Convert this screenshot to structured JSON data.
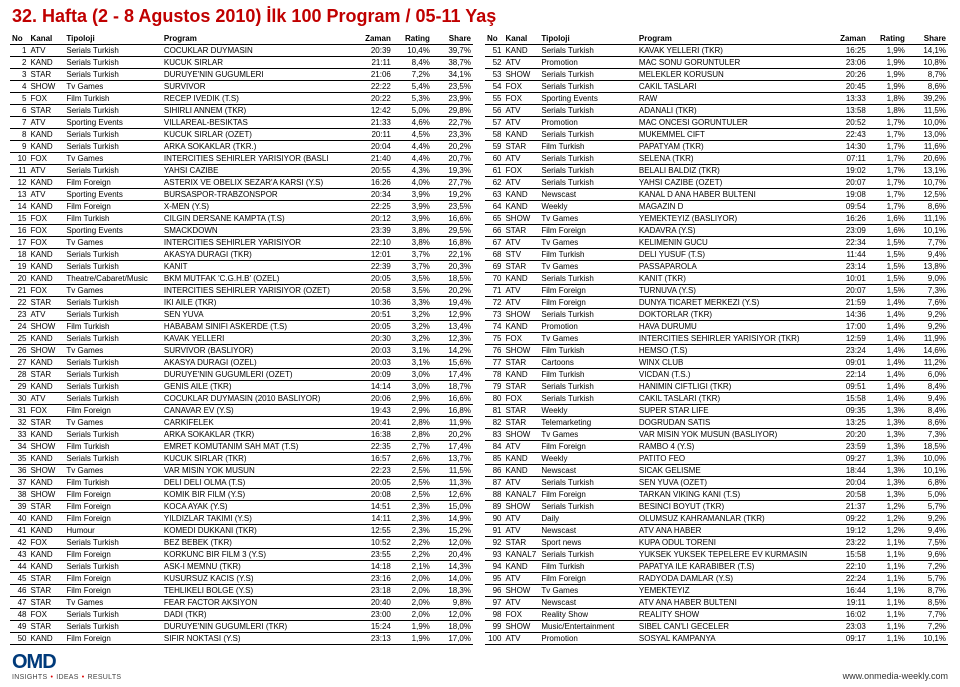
{
  "title": "32. Hafta (2 - 8 Agustos 2010) İlk 100 Program / 05-11 Yaş",
  "columns": [
    "No",
    "Kanal",
    "Tipoloji",
    "Program",
    "Zaman",
    "Rating",
    "Share"
  ],
  "logo": "OMD",
  "tagline_parts": [
    "INSIGHTS",
    "IDEAS",
    "RESULTS"
  ],
  "url": "www.onmedia-weekly.com",
  "rowsLeft": [
    [
      1,
      "ATV",
      "Serials Turkish",
      "COCUKLAR DUYMASIN",
      "20:39",
      "10,4%",
      "39,7%"
    ],
    [
      2,
      "KAND",
      "Serials Turkish",
      "KUCUK SIRLAR",
      "21:11",
      "8,4%",
      "38,7%"
    ],
    [
      3,
      "STAR",
      "Serials Turkish",
      "DURUYE'NIN GUGUMLERI",
      "21:06",
      "7,2%",
      "34,1%"
    ],
    [
      4,
      "SHOW",
      "Tv Games",
      "SURVIVOR",
      "22:22",
      "5,4%",
      "23,5%"
    ],
    [
      5,
      "FOX",
      "Film Turkish",
      "RECEP IVEDIK (T.S)",
      "20:22",
      "5,3%",
      "23,9%"
    ],
    [
      6,
      "STAR",
      "Serials Turkish",
      "SIHIRLI ANNEM (TKR)",
      "12:42",
      "5,0%",
      "29,8%"
    ],
    [
      7,
      "ATV",
      "Sporting Events",
      "VILLAREAL-BESIKTAS",
      "21:33",
      "4,6%",
      "22,7%"
    ],
    [
      8,
      "KAND",
      "Serials Turkish",
      "KUCUK SIRLAR (OZET)",
      "20:11",
      "4,5%",
      "23,3%"
    ],
    [
      9,
      "KAND",
      "Serials Turkish",
      "ARKA SOKAKLAR (TKR.)",
      "20:04",
      "4,4%",
      "20,2%"
    ],
    [
      10,
      "FOX",
      "Tv Games",
      "INTERCITIES SEHIRLER YARISIYOR (BASLI",
      "21:40",
      "4,4%",
      "20,7%"
    ],
    [
      11,
      "ATV",
      "Serials Turkish",
      "YAHSI CAZIBE",
      "20:55",
      "4,3%",
      "19,3%"
    ],
    [
      12,
      "KAND",
      "Film Foreign",
      "ASTERIX VE OBELIX SEZAR'A KARSI (Y.S)",
      "16:26",
      "4,0%",
      "27,7%"
    ],
    [
      13,
      "ATV",
      "Sporting Events",
      "BURSASPOR-TRABZONSPOR",
      "20:34",
      "3,9%",
      "19,2%"
    ],
    [
      14,
      "KAND",
      "Film Foreign",
      "X-MEN (Y.S)",
      "22:25",
      "3,9%",
      "23,5%"
    ],
    [
      15,
      "FOX",
      "Film Turkish",
      "CILGIN DERSANE KAMPTA (T.S)",
      "20:12",
      "3,9%",
      "16,6%"
    ],
    [
      16,
      "FOX",
      "Sporting Events",
      "SMACKDOWN",
      "23:39",
      "3,8%",
      "29,5%"
    ],
    [
      17,
      "FOX",
      "Tv Games",
      "INTERCITIES SEHIRLER YARISIYOR",
      "22:10",
      "3,8%",
      "16,8%"
    ],
    [
      18,
      "KAND",
      "Serials Turkish",
      "AKASYA DURAGI (TKR)",
      "12:01",
      "3,7%",
      "22,1%"
    ],
    [
      19,
      "KAND",
      "Serials Turkish",
      "KANIT",
      "22:39",
      "3,7%",
      "20,3%"
    ],
    [
      20,
      "KAND",
      "Theatre/Cabaret/Music",
      "BKM MUTFAK 'C.G.H.B' (OZEL)",
      "20:05",
      "3,5%",
      "18,5%"
    ],
    [
      21,
      "FOX",
      "Tv Games",
      "INTERCITIES SEHIRLER YARISIYOR (OZET)",
      "20:58",
      "3,5%",
      "20,2%"
    ],
    [
      22,
      "STAR",
      "Serials Turkish",
      "IKI AILE (TKR)",
      "10:36",
      "3,3%",
      "19,4%"
    ],
    [
      23,
      "ATV",
      "Serials Turkish",
      "SEN YUVA",
      "20:51",
      "3,2%",
      "12,9%"
    ],
    [
      24,
      "SHOW",
      "Film Turkish",
      "HABABAM SINIFI ASKERDE (T.S)",
      "20:05",
      "3,2%",
      "13,4%"
    ],
    [
      25,
      "KAND",
      "Serials Turkish",
      "KAVAK YELLERI",
      "20:30",
      "3,2%",
      "12,3%"
    ],
    [
      26,
      "SHOW",
      "Tv Games",
      "SURVIVOR (BASLIYOR)",
      "20:03",
      "3,1%",
      "14,2%"
    ],
    [
      27,
      "KAND",
      "Serials Turkish",
      "AKASYA DURAGI (OZEL)",
      "20:03",
      "3,1%",
      "15,6%"
    ],
    [
      28,
      "STAR",
      "Serials Turkish",
      "DURUYE'NIN GUGUMLERI (OZET)",
      "20:09",
      "3,0%",
      "17,4%"
    ],
    [
      29,
      "KAND",
      "Serials Turkish",
      "GENIS AILE (TKR)",
      "14:14",
      "3,0%",
      "18,7%"
    ],
    [
      30,
      "ATV",
      "Serials Turkish",
      "COCUKLAR DUYMASIN (2010 BASLIYOR)",
      "20:06",
      "2,9%",
      "16,6%"
    ],
    [
      31,
      "FOX",
      "Film Foreign",
      "CANAVAR EV (Y.S)",
      "19:43",
      "2,9%",
      "16,8%"
    ],
    [
      32,
      "STAR",
      "Tv Games",
      "CARKIFELEK",
      "20:41",
      "2,8%",
      "11,9%"
    ],
    [
      33,
      "KAND",
      "Serials Turkish",
      "ARKA SOKAKLAR (TKR)",
      "16:38",
      "2,8%",
      "20,2%"
    ],
    [
      34,
      "SHOW",
      "Film Turkish",
      "EMRET KOMUTANIM SAH MAT (T.S)",
      "22:35",
      "2,7%",
      "17,4%"
    ],
    [
      35,
      "KAND",
      "Serials Turkish",
      "KUCUK SIRLAR (TKR)",
      "16:57",
      "2,6%",
      "13,7%"
    ],
    [
      36,
      "SHOW",
      "Tv Games",
      "VAR MISIN YOK MUSUN",
      "22:23",
      "2,5%",
      "11,5%"
    ],
    [
      37,
      "KAND",
      "Film Turkish",
      "DELI DELI OLMA (T.S)",
      "20:05",
      "2,5%",
      "11,3%"
    ],
    [
      38,
      "SHOW",
      "Film Foreign",
      "KOMIK BIR FILM (Y.S)",
      "20:08",
      "2,5%",
      "12,6%"
    ],
    [
      39,
      "STAR",
      "Film Foreign",
      "KOCA AYAK (Y.S)",
      "14:51",
      "2,3%",
      "15,0%"
    ],
    [
      40,
      "KAND",
      "Film Foreign",
      "YILDIZLAR TAKIMI (Y.S)",
      "14:11",
      "2,3%",
      "14,9%"
    ],
    [
      41,
      "KAND",
      "Humour",
      "KOMEDI DUKKANI (TKR)",
      "12:55",
      "2,3%",
      "15,2%"
    ],
    [
      42,
      "FOX",
      "Serials Turkish",
      "BEZ BEBEK (TKR)",
      "10:52",
      "2,2%",
      "12,0%"
    ],
    [
      43,
      "KAND",
      "Film Foreign",
      "KORKUNC BIR FILM 3 (Y.S)",
      "23:55",
      "2,2%",
      "20,4%"
    ],
    [
      44,
      "KAND",
      "Serials Turkish",
      "ASK-I MEMNU (TKR)",
      "14:18",
      "2,1%",
      "14,3%"
    ],
    [
      45,
      "STAR",
      "Film Foreign",
      "KUSURSUZ KACIS (Y.S)",
      "23:16",
      "2,0%",
      "14,0%"
    ],
    [
      46,
      "STAR",
      "Film Foreign",
      "TEHLIKELI BOLGE (Y.S)",
      "23:18",
      "2,0%",
      "18,3%"
    ],
    [
      47,
      "STAR",
      "Tv Games",
      "FEAR FACTOR AKSIYON",
      "20:40",
      "2,0%",
      "9,8%"
    ],
    [
      48,
      "FOX",
      "Serials Turkish",
      "DADI (TKR)",
      "23:00",
      "2,0%",
      "12,0%"
    ],
    [
      49,
      "STAR",
      "Serials Turkish",
      "DURUYE'NIN GUGUMLERI (TKR)",
      "15:24",
      "1,9%",
      "18,0%"
    ],
    [
      50,
      "KAND",
      "Film Foreign",
      "SIFIR NOKTASI (Y.S)",
      "23:13",
      "1,9%",
      "17,0%"
    ]
  ],
  "rowsRight": [
    [
      51,
      "KAND",
      "Serials Turkish",
      "KAVAK YELLERI (TKR)",
      "16:25",
      "1,9%",
      "14,1%"
    ],
    [
      52,
      "ATV",
      "Promotion",
      "MAC SONU GORUNTULER",
      "23:06",
      "1,9%",
      "10,8%"
    ],
    [
      53,
      "SHOW",
      "Serials Turkish",
      "MELEKLER KORUSUN",
      "20:26",
      "1,9%",
      "8,7%"
    ],
    [
      54,
      "FOX",
      "Serials Turkish",
      "CAKIL TASLARI",
      "20:45",
      "1,9%",
      "8,6%"
    ],
    [
      55,
      "FOX",
      "Sporting Events",
      "RAW",
      "13:33",
      "1,8%",
      "39,2%"
    ],
    [
      56,
      "ATV",
      "Serials Turkish",
      "ADANALI (TKR)",
      "13:58",
      "1,8%",
      "11,5%"
    ],
    [
      57,
      "ATV",
      "Promotion",
      "MAC ONCESI GORUNTULER",
      "20:52",
      "1,7%",
      "10,0%"
    ],
    [
      58,
      "KAND",
      "Serials Turkish",
      "MUKEMMEL CIFT",
      "22:43",
      "1,7%",
      "13,0%"
    ],
    [
      59,
      "STAR",
      "Film Turkish",
      "PAPATYAM (TKR)",
      "14:30",
      "1,7%",
      "11,6%"
    ],
    [
      60,
      "ATV",
      "Serials Turkish",
      "SELENA (TKR)",
      "07:11",
      "1,7%",
      "20,6%"
    ],
    [
      61,
      "FOX",
      "Serials Turkish",
      "BELALI BALDIZ (TKR)",
      "19:02",
      "1,7%",
      "13,1%"
    ],
    [
      62,
      "ATV",
      "Serials Turkish",
      "YAHSI CAZIBE (OZET)",
      "20:07",
      "1,7%",
      "10,7%"
    ],
    [
      63,
      "KAND",
      "Newscast",
      "KANAL D ANA HABER BULTENI",
      "19:08",
      "1,7%",
      "12,5%"
    ],
    [
      64,
      "KAND",
      "Weekly",
      "MAGAZIN D",
      "09:54",
      "1,7%",
      "8,6%"
    ],
    [
      65,
      "SHOW",
      "Tv Games",
      "YEMEKTEYIZ (BASLIYOR)",
      "16:26",
      "1,6%",
      "11,1%"
    ],
    [
      66,
      "STAR",
      "Film Foreign",
      "KADAVRA (Y.S)",
      "23:09",
      "1,6%",
      "10,1%"
    ],
    [
      67,
      "ATV",
      "Tv Games",
      "KELIMENIN GUCU",
      "22:34",
      "1,5%",
      "7,7%"
    ],
    [
      68,
      "STV",
      "Film Turkish",
      "DELI YUSUF (T.S)",
      "11:44",
      "1,5%",
      "9,4%"
    ],
    [
      69,
      "STAR",
      "Tv Games",
      "PASSAPAROLA",
      "23:14",
      "1,5%",
      "13,8%"
    ],
    [
      70,
      "KAND",
      "Serials Turkish",
      "KANIT (TKR)",
      "10:01",
      "1,5%",
      "9,0%"
    ],
    [
      71,
      "ATV",
      "Film Foreign",
      "TURNUVA (Y.S)",
      "20:07",
      "1,5%",
      "7,3%"
    ],
    [
      72,
      "ATV",
      "Film Foreign",
      "DUNYA TICARET MERKEZI (Y.S)",
      "21:59",
      "1,4%",
      "7,6%"
    ],
    [
      73,
      "SHOW",
      "Serials Turkish",
      "DOKTORLAR (TKR)",
      "14:36",
      "1,4%",
      "9,2%"
    ],
    [
      74,
      "KAND",
      "Promotion",
      "HAVA DURUMU",
      "17:00",
      "1,4%",
      "9,2%"
    ],
    [
      75,
      "FOX",
      "Tv Games",
      "INTERCITIES SEHIRLER YARISIYOR (TKR)",
      "12:59",
      "1,4%",
      "11,9%"
    ],
    [
      76,
      "SHOW",
      "Film Turkish",
      "HEMSO (T.S)",
      "23:24",
      "1,4%",
      "14,6%"
    ],
    [
      77,
      "STAR",
      "Cartoons",
      "WINX CLUB",
      "09:01",
      "1,4%",
      "11,2%"
    ],
    [
      78,
      "KAND",
      "Film Turkish",
      "VICDAN (T.S.)",
      "22:14",
      "1,4%",
      "6,0%"
    ],
    [
      79,
      "STAR",
      "Serials Turkish",
      "HANIMIN CIFTLIGI (TKR)",
      "09:51",
      "1,4%",
      "8,4%"
    ],
    [
      80,
      "FOX",
      "Serials Turkish",
      "CAKIL TASLARI (TKR)",
      "15:58",
      "1,4%",
      "9,4%"
    ],
    [
      81,
      "STAR",
      "Weekly",
      "SUPER STAR LIFE",
      "09:35",
      "1,3%",
      "8,4%"
    ],
    [
      82,
      "STAR",
      "Telemarketing",
      "DOGRUDAN SATIS",
      "13:25",
      "1,3%",
      "8,6%"
    ],
    [
      83,
      "SHOW",
      "Tv Games",
      "VAR MISIN YOK MUSUN (BASLIYOR)",
      "20:20",
      "1,3%",
      "7,3%"
    ],
    [
      84,
      "ATV",
      "Film Foreign",
      "RAMBO 4 (Y.S)",
      "23:59",
      "1,3%",
      "18,5%"
    ],
    [
      85,
      "KAND",
      "Weekly",
      "PATITO FEO",
      "09:27",
      "1,3%",
      "10,0%"
    ],
    [
      86,
      "KAND",
      "Newscast",
      "SICAK GELISME",
      "18:44",
      "1,3%",
      "10,1%"
    ],
    [
      87,
      "ATV",
      "Serials Turkish",
      "SEN YUVA (OZET)",
      "20:04",
      "1,3%",
      "6,8%"
    ],
    [
      88,
      "KANAL7",
      "Film Foreign",
      "TARKAN VIKING KANI (T.S)",
      "20:58",
      "1,3%",
      "5,0%"
    ],
    [
      89,
      "SHOW",
      "Serials Turkish",
      "BESINCI BOYUT (TKR)",
      "21:37",
      "1,2%",
      "5,7%"
    ],
    [
      90,
      "ATV",
      "Daily",
      "OLUMSUZ KAHRAMANLAR (TKR)",
      "09:22",
      "1,2%",
      "9,2%"
    ],
    [
      91,
      "ATV",
      "Newscast",
      "ATV ANA HABER",
      "19:12",
      "1,2%",
      "9,4%"
    ],
    [
      92,
      "STAR",
      "Sport news",
      "KUPA ODUL TORENI",
      "23:22",
      "1,1%",
      "7,5%"
    ],
    [
      93,
      "KANAL7",
      "Serials Turkish",
      "YUKSEK YUKSEK TEPELERE EV KURMASIN",
      "15:58",
      "1,1%",
      "9,6%"
    ],
    [
      94,
      "KAND",
      "Film Turkish",
      "PAPATYA ILE KARABIBER (T.S)",
      "22:10",
      "1,1%",
      "7,2%"
    ],
    [
      95,
      "ATV",
      "Film Foreign",
      "RADYODA DAMLAR (Y.S)",
      "22:24",
      "1,1%",
      "5,7%"
    ],
    [
      96,
      "SHOW",
      "Tv Games",
      "YEMEKTEYIZ",
      "16:44",
      "1,1%",
      "8,7%"
    ],
    [
      97,
      "ATV",
      "Newscast",
      "ATV ANA HABER BULTENI",
      "19:11",
      "1,1%",
      "8,5%"
    ],
    [
      98,
      "FOX",
      "Reality Show",
      "REALITY SHOW",
      "16:02",
      "1,1%",
      "7,7%"
    ],
    [
      99,
      "SHOW",
      "Music/Entertainment",
      "SIBEL CAN'LI GECELER",
      "23:03",
      "1,1%",
      "7,2%"
    ],
    [
      100,
      "ATV",
      "Promotion",
      "SOSYAL KAMPANYA",
      "09:17",
      "1,1%",
      "10,1%"
    ]
  ]
}
